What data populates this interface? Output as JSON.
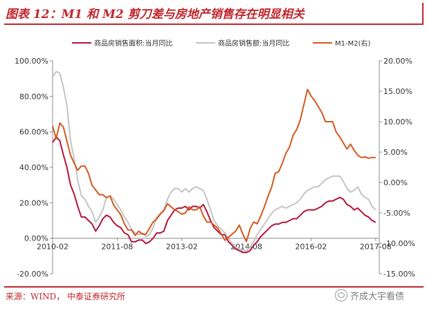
{
  "header": {
    "title": "图表 12：M1 和 M2 剪刀差与房地产销售存在明显相关"
  },
  "footer": {
    "source": "来源：WIND， 中泰证券研究所",
    "watermark": "齐成大宇看债"
  },
  "colors": {
    "accent": "#c0262d",
    "series_area": "#b3143a",
    "series_amount": "#c4c4c4",
    "series_spread": "#d4581e"
  },
  "chart_data": {
    "type": "line",
    "x_ticks": [
      "2010-02",
      "2011-08",
      "2013-02",
      "2014-08",
      "2016-02",
      "2017-08"
    ],
    "x_range": [
      "2010-02",
      "2017-09"
    ],
    "y_left": {
      "ticks": [
        "-20.00%",
        "0.00%",
        "20.00%",
        "40.00%",
        "60.00%",
        "80.00%",
        "100.00%"
      ],
      "lim": [
        -20,
        100
      ]
    },
    "y_right": {
      "ticks": [
        "-15.00%",
        "-10.00%",
        "-5.00%",
        "0.00%",
        "5.00%",
        "10.00%",
        "15.00%",
        "20.00%"
      ],
      "lim": [
        -15,
        20
      ]
    },
    "legend_position": "top",
    "series": [
      {
        "name": "商品房销售面积:当月同比",
        "axis": "left",
        "color": "#b3143a",
        "points": [
          [
            "2010-02",
            54
          ],
          [
            "2010-03",
            57
          ],
          [
            "2010-04",
            55
          ],
          [
            "2010-05",
            47
          ],
          [
            "2010-06",
            40
          ],
          [
            "2010-07",
            30
          ],
          [
            "2010-08",
            25
          ],
          [
            "2010-09",
            18
          ],
          [
            "2010-10",
            12
          ],
          [
            "2010-11",
            12
          ],
          [
            "2010-12",
            10
          ],
          [
            "2011-01",
            8
          ],
          [
            "2011-02",
            4
          ],
          [
            "2011-03",
            7
          ],
          [
            "2011-04",
            11
          ],
          [
            "2011-05",
            13
          ],
          [
            "2011-06",
            12
          ],
          [
            "2011-07",
            9
          ],
          [
            "2011-08",
            7
          ],
          [
            "2011-09",
            6
          ],
          [
            "2011-10",
            3
          ],
          [
            "2011-11",
            2
          ],
          [
            "2011-12",
            -2
          ],
          [
            "2012-01",
            -2
          ],
          [
            "2012-02",
            -1
          ],
          [
            "2012-03",
            -1
          ],
          [
            "2012-04",
            -3
          ],
          [
            "2012-05",
            -2
          ],
          [
            "2012-06",
            0
          ],
          [
            "2012-07",
            3
          ],
          [
            "2012-08",
            3
          ],
          [
            "2012-09",
            4
          ],
          [
            "2012-10",
            10
          ],
          [
            "2012-11",
            13
          ],
          [
            "2012-12",
            16
          ],
          [
            "2013-01",
            17
          ],
          [
            "2013-02",
            17
          ],
          [
            "2013-03",
            18
          ],
          [
            "2013-04",
            16
          ],
          [
            "2013-05",
            18
          ],
          [
            "2013-06",
            18
          ],
          [
            "2013-07",
            17
          ],
          [
            "2013-08",
            19
          ],
          [
            "2013-09",
            15
          ],
          [
            "2013-10",
            10
          ],
          [
            "2013-11",
            6
          ],
          [
            "2013-12",
            4
          ],
          [
            "2014-01",
            2
          ],
          [
            "2014-02",
            2
          ],
          [
            "2014-03",
            -2
          ],
          [
            "2014-04",
            -4
          ],
          [
            "2014-05",
            -6
          ],
          [
            "2014-06",
            -7
          ],
          [
            "2014-07",
            -8
          ],
          [
            "2014-08",
            -8
          ],
          [
            "2014-09",
            -7
          ],
          [
            "2014-10",
            -4
          ],
          [
            "2014-11",
            -2
          ],
          [
            "2014-12",
            1
          ],
          [
            "2015-01",
            3
          ],
          [
            "2015-02",
            5
          ],
          [
            "2015-03",
            7
          ],
          [
            "2015-04",
            8
          ],
          [
            "2015-05",
            8
          ],
          [
            "2015-06",
            9
          ],
          [
            "2015-07",
            9
          ],
          [
            "2015-08",
            10
          ],
          [
            "2015-09",
            11
          ],
          [
            "2015-10",
            11
          ],
          [
            "2015-11",
            13
          ],
          [
            "2015-12",
            15
          ],
          [
            "2016-01",
            16
          ],
          [
            "2016-02",
            16
          ],
          [
            "2016-03",
            16
          ],
          [
            "2016-04",
            17
          ],
          [
            "2016-05",
            18
          ],
          [
            "2016-06",
            20
          ],
          [
            "2016-07",
            21
          ],
          [
            "2016-08",
            21
          ],
          [
            "2016-09",
            22
          ],
          [
            "2016-10",
            23
          ],
          [
            "2016-11",
            22
          ],
          [
            "2016-12",
            19
          ],
          [
            "2017-01",
            18
          ],
          [
            "2017-02",
            16
          ],
          [
            "2017-03",
            17
          ],
          [
            "2017-04",
            15
          ],
          [
            "2017-05",
            13
          ],
          [
            "2017-06",
            12
          ],
          [
            "2017-07",
            10
          ],
          [
            "2017-08",
            9
          ]
        ]
      },
      {
        "name": "商品房销售额:当月同比",
        "axis": "left",
        "color": "#c4c4c4",
        "points": [
          [
            "2010-02",
            91
          ],
          [
            "2010-03",
            94
          ],
          [
            "2010-04",
            93
          ],
          [
            "2010-05",
            85
          ],
          [
            "2010-06",
            75
          ],
          [
            "2010-07",
            55
          ],
          [
            "2010-08",
            45
          ],
          [
            "2010-09",
            33
          ],
          [
            "2010-10",
            24
          ],
          [
            "2010-11",
            22
          ],
          [
            "2010-12",
            18
          ],
          [
            "2011-01",
            15
          ],
          [
            "2011-02",
            9
          ],
          [
            "2011-03",
            12
          ],
          [
            "2011-04",
            16
          ],
          [
            "2011-05",
            23
          ],
          [
            "2011-06",
            24
          ],
          [
            "2011-07",
            22
          ],
          [
            "2011-08",
            19
          ],
          [
            "2011-09",
            16
          ],
          [
            "2011-10",
            12
          ],
          [
            "2011-11",
            9
          ],
          [
            "2011-12",
            5
          ],
          [
            "2012-01",
            3
          ],
          [
            "2012-02",
            2
          ],
          [
            "2012-03",
            3
          ],
          [
            "2012-04",
            1
          ],
          [
            "2012-05",
            2
          ],
          [
            "2012-06",
            6
          ],
          [
            "2012-07",
            12
          ],
          [
            "2012-08",
            14
          ],
          [
            "2012-09",
            16
          ],
          [
            "2012-10",
            22
          ],
          [
            "2012-11",
            26
          ],
          [
            "2012-12",
            28
          ],
          [
            "2013-01",
            28
          ],
          [
            "2013-02",
            26
          ],
          [
            "2013-03",
            28
          ],
          [
            "2013-04",
            26
          ],
          [
            "2013-05",
            28
          ],
          [
            "2013-06",
            29
          ],
          [
            "2013-07",
            28
          ],
          [
            "2013-08",
            27
          ],
          [
            "2013-09",
            22
          ],
          [
            "2013-10",
            16
          ],
          [
            "2013-11",
            10
          ],
          [
            "2013-12",
            7
          ],
          [
            "2014-01",
            5
          ],
          [
            "2014-02",
            3
          ],
          [
            "2014-03",
            0
          ],
          [
            "2014-04",
            -3
          ],
          [
            "2014-05",
            -5
          ],
          [
            "2014-06",
            -6
          ],
          [
            "2014-07",
            -7
          ],
          [
            "2014-08",
            -7
          ],
          [
            "2014-09",
            -5
          ],
          [
            "2014-10",
            -2
          ],
          [
            "2014-11",
            2
          ],
          [
            "2014-12",
            5
          ],
          [
            "2015-01",
            8
          ],
          [
            "2015-02",
            11
          ],
          [
            "2015-03",
            14
          ],
          [
            "2015-04",
            16
          ],
          [
            "2015-05",
            17
          ],
          [
            "2015-06",
            18
          ],
          [
            "2015-07",
            17
          ],
          [
            "2015-08",
            18
          ],
          [
            "2015-09",
            19
          ],
          [
            "2015-10",
            20
          ],
          [
            "2015-11",
            22
          ],
          [
            "2015-12",
            25
          ],
          [
            "2016-01",
            27
          ],
          [
            "2016-02",
            28
          ],
          [
            "2016-03",
            29
          ],
          [
            "2016-04",
            29
          ],
          [
            "2016-05",
            31
          ],
          [
            "2016-06",
            33
          ],
          [
            "2016-07",
            34
          ],
          [
            "2016-08",
            35
          ],
          [
            "2016-09",
            35
          ],
          [
            "2016-10",
            35
          ],
          [
            "2016-11",
            32
          ],
          [
            "2016-12",
            28
          ],
          [
            "2017-01",
            26
          ],
          [
            "2017-02",
            27
          ],
          [
            "2017-03",
            29
          ],
          [
            "2017-04",
            25
          ],
          [
            "2017-05",
            23
          ],
          [
            "2017-06",
            22
          ],
          [
            "2017-07",
            18
          ],
          [
            "2017-08",
            16
          ]
        ]
      },
      {
        "name": "M1-M2(右)",
        "axis": "right",
        "color": "#d4581e",
        "points": [
          [
            "2010-02",
            9.3
          ],
          [
            "2010-03",
            7.2
          ],
          [
            "2010-04",
            9.8
          ],
          [
            "2010-05",
            9.1
          ],
          [
            "2010-06",
            6.8
          ],
          [
            "2010-07",
            4.5
          ],
          [
            "2010-08",
            3.2
          ],
          [
            "2010-09",
            2.0
          ],
          [
            "2010-10",
            2.7
          ],
          [
            "2010-11",
            2.7
          ],
          [
            "2010-12",
            1.5
          ],
          [
            "2011-01",
            -0.5
          ],
          [
            "2011-02",
            -1.2
          ],
          [
            "2011-03",
            -2.0
          ],
          [
            "2011-04",
            -2.0
          ],
          [
            "2011-05",
            -2.5
          ],
          [
            "2011-06",
            -2.2
          ],
          [
            "2011-07",
            -3.7
          ],
          [
            "2011-08",
            -4.5
          ],
          [
            "2011-09",
            -5.3
          ],
          [
            "2011-10",
            -6.8
          ],
          [
            "2011-11",
            -7.8
          ],
          [
            "2011-12",
            -7.8
          ],
          [
            "2012-01",
            -8.7
          ],
          [
            "2012-02",
            -8.0
          ],
          [
            "2012-03",
            -8.5
          ],
          [
            "2012-04",
            -8.5
          ],
          [
            "2012-05",
            -7.5
          ],
          [
            "2012-06",
            -6.5
          ],
          [
            "2012-07",
            -6.0
          ],
          [
            "2012-08",
            -5.2
          ],
          [
            "2012-09",
            -4.6
          ],
          [
            "2012-10",
            -3.5
          ],
          [
            "2012-11",
            -4.0
          ],
          [
            "2012-12",
            -4.5
          ],
          [
            "2013-01",
            -4.8
          ],
          [
            "2013-02",
            -5.2
          ],
          [
            "2013-03",
            -5.0
          ],
          [
            "2013-04",
            -4.0
          ],
          [
            "2013-05",
            -4.5
          ],
          [
            "2013-06",
            -4.5
          ],
          [
            "2013-07",
            -4.0
          ],
          [
            "2013-08",
            -5.5
          ],
          [
            "2013-09",
            -6.5
          ],
          [
            "2013-10",
            -6.5
          ],
          [
            "2013-11",
            -7.0
          ],
          [
            "2013-12",
            -7.5
          ],
          [
            "2014-01",
            -8.5
          ],
          [
            "2014-02",
            -9.5
          ],
          [
            "2014-03",
            -9.0
          ],
          [
            "2014-04",
            -8.5
          ],
          [
            "2014-05",
            -8.0
          ],
          [
            "2014-06",
            -7.0
          ],
          [
            "2014-07",
            -8.5
          ],
          [
            "2014-08",
            -9.7
          ],
          [
            "2014-09",
            -7.6
          ],
          [
            "2014-10",
            -6.5
          ],
          [
            "2014-11",
            -6.8
          ],
          [
            "2014-12",
            -5.5
          ],
          [
            "2015-01",
            -4.0
          ],
          [
            "2015-02",
            -2.3
          ],
          [
            "2015-03",
            -0.8
          ],
          [
            "2015-04",
            1.5
          ],
          [
            "2015-05",
            1.8
          ],
          [
            "2015-06",
            3.2
          ],
          [
            "2015-07",
            4.8
          ],
          [
            "2015-08",
            5.8
          ],
          [
            "2015-09",
            7.8
          ],
          [
            "2015-10",
            8.7
          ],
          [
            "2015-11",
            10.3
          ],
          [
            "2015-12",
            12.8
          ],
          [
            "2016-01",
            15.3
          ],
          [
            "2016-02",
            14.2
          ],
          [
            "2016-03",
            13.5
          ],
          [
            "2016-04",
            12.5
          ],
          [
            "2016-05",
            11.5
          ],
          [
            "2016-06",
            10.0
          ],
          [
            "2016-07",
            10.0
          ],
          [
            "2016-08",
            10.0
          ],
          [
            "2016-09",
            8.3
          ],
          [
            "2016-10",
            7.5
          ],
          [
            "2016-11",
            6.5
          ],
          [
            "2016-12",
            5.5
          ],
          [
            "2017-01",
            6.3
          ],
          [
            "2017-02",
            5.3
          ],
          [
            "2017-03",
            4.5
          ],
          [
            "2017-04",
            4.1
          ],
          [
            "2017-05",
            4.2
          ],
          [
            "2017-06",
            4.0
          ],
          [
            "2017-07",
            4.1
          ],
          [
            "2017-08",
            4.1
          ]
        ]
      }
    ]
  }
}
